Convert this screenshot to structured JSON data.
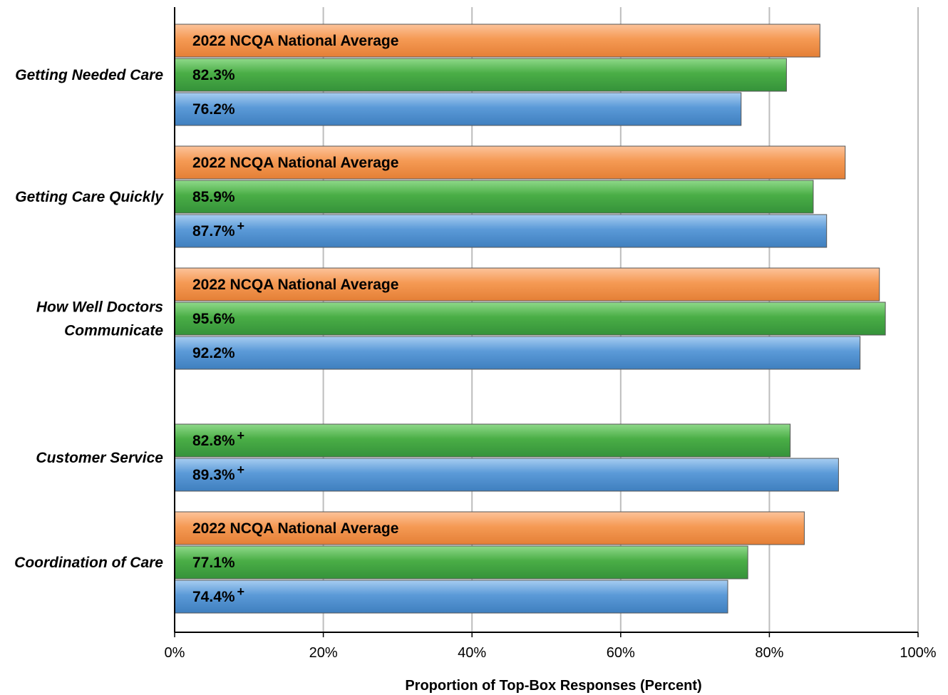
{
  "chart_data": {
    "type": "bar",
    "orientation": "horizontal",
    "xlabel": "Proportion of Top-Box Responses (Percent)",
    "xlim": [
      0,
      100
    ],
    "x_ticks": [
      "0%",
      "20%",
      "40%",
      "60%",
      "80%",
      "100%"
    ],
    "grid": true,
    "colors": {
      "orange": "#f59a54",
      "green": "#4aae46",
      "blue": "#5b9ad8"
    },
    "groups": [
      {
        "category": [
          "Getting Needed Care"
        ],
        "bars": [
          {
            "color": "orange",
            "value": 86.8,
            "label": "2022 NCQA National Average",
            "plus": ""
          },
          {
            "color": "green",
            "value": 82.3,
            "label": "82.3%",
            "plus": ""
          },
          {
            "color": "blue",
            "value": 76.2,
            "label": "76.2%",
            "plus": ""
          }
        ]
      },
      {
        "category": [
          "Getting Care Quickly"
        ],
        "bars": [
          {
            "color": "orange",
            "value": 90.2,
            "label": "2022 NCQA National Average",
            "plus": ""
          },
          {
            "color": "green",
            "value": 85.9,
            "label": "85.9%",
            "plus": ""
          },
          {
            "color": "blue",
            "value": 87.7,
            "label": "87.7%",
            "plus": "+"
          }
        ]
      },
      {
        "category": [
          "How Well Doctors",
          "Communicate"
        ],
        "bars": [
          {
            "color": "orange",
            "value": 94.8,
            "label": "2022 NCQA National Average",
            "plus": ""
          },
          {
            "color": "green",
            "value": 95.6,
            "label": "95.6%",
            "plus": ""
          },
          {
            "color": "blue",
            "value": 92.2,
            "label": "92.2%",
            "plus": ""
          }
        ]
      },
      {
        "category": [
          "Customer Service"
        ],
        "bars": [
          {
            "color": "green",
            "value": 82.8,
            "label": "82.8%",
            "plus": "+"
          },
          {
            "color": "blue",
            "value": 89.3,
            "label": "89.3%",
            "plus": "+"
          }
        ]
      },
      {
        "category": [
          "Coordination of Care"
        ],
        "bars": [
          {
            "color": "orange",
            "value": 84.7,
            "label": "2022 NCQA National Average",
            "plus": ""
          },
          {
            "color": "green",
            "value": 77.1,
            "label": "77.1%",
            "plus": ""
          },
          {
            "color": "blue",
            "value": 74.4,
            "label": "74.4%",
            "plus": "+"
          }
        ]
      }
    ]
  }
}
